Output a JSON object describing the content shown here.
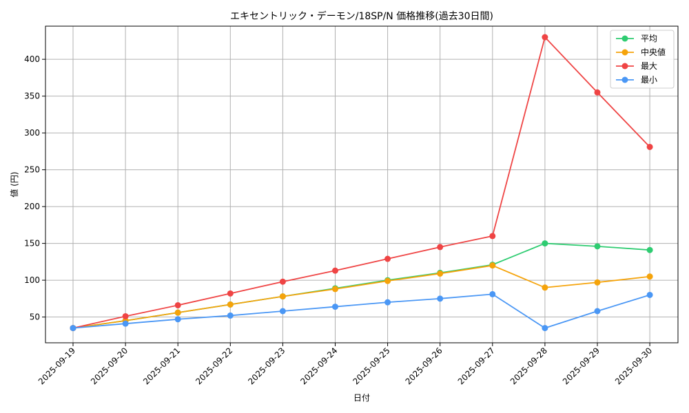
{
  "chart_data": {
    "type": "line",
    "title": "エキセントリック・デーモン/18SP/N 価格推移(過去30日間)",
    "xlabel": "日付",
    "ylabel": "値 (円)",
    "categories": [
      "2025-09-19",
      "2025-09-20",
      "2025-09-21",
      "2025-09-22",
      "2025-09-23",
      "2025-09-24",
      "2025-09-25",
      "2025-09-26",
      "2025-09-27",
      "2025-09-28",
      "2025-09-29",
      "2025-09-30"
    ],
    "y_ticks": [
      50,
      100,
      150,
      200,
      250,
      300,
      350,
      400
    ],
    "ylim": [
      15,
      445
    ],
    "grid": true,
    "legend_position": "top-right",
    "series": [
      {
        "name": "平均",
        "color": "#2ecc71",
        "values": [
          35,
          45,
          56,
          67,
          78,
          89,
          100,
          110,
          121,
          150,
          146,
          141
        ]
      },
      {
        "name": "中央値",
        "color": "#f5a30a",
        "values": [
          35,
          45,
          56,
          67,
          78,
          88,
          99,
          109,
          120,
          90,
          97,
          105
        ]
      },
      {
        "name": "最大",
        "color": "#ef4444",
        "values": [
          35,
          51,
          66,
          82,
          98,
          113,
          129,
          145,
          160,
          430,
          355,
          281
        ]
      },
      {
        "name": "最小",
        "color": "#4a97f5",
        "values": [
          35,
          41,
          47,
          52,
          58,
          64,
          70,
          75,
          81,
          35,
          58,
          80
        ]
      }
    ]
  }
}
